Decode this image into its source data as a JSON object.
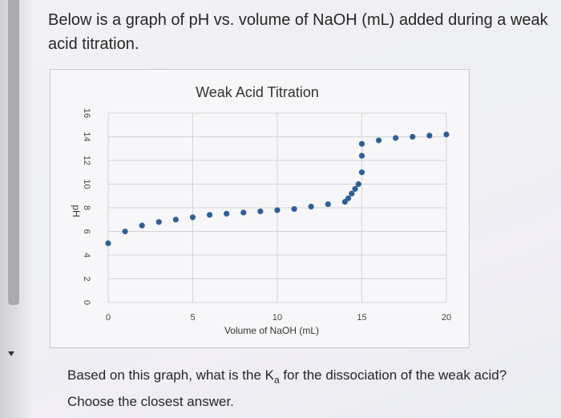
{
  "question": {
    "intro": "Below is a graph of pH vs. volume of NaOH (mL) added during a weak acid titration.",
    "prompt_line1_before": "Based on this graph, what is the K",
    "prompt_subscript": "a",
    "prompt_line1_after": " for the dissociation of the weak acid?",
    "prompt_line2": "Choose the closest answer."
  },
  "colors": {
    "marker": "#2f5f9a",
    "grid": "#d4d4d8"
  },
  "chart_data": {
    "type": "scatter",
    "title": "Weak Acid Titration",
    "xlabel": "Volume of NaOH (mL)",
    "ylabel": "pH",
    "xlim": [
      0,
      20
    ],
    "ylim": [
      0,
      16
    ],
    "xticks": [
      0,
      5,
      10,
      15,
      20
    ],
    "yticks": [
      0,
      2,
      4,
      6,
      8,
      10,
      12,
      14,
      16
    ],
    "grid": true,
    "series": [
      {
        "x": [
          0,
          1,
          2,
          3,
          4,
          5,
          6,
          7,
          8,
          9,
          10,
          11,
          12,
          13,
          14,
          14.2,
          14.4,
          14.6,
          14.8,
          15,
          15,
          15,
          16,
          17,
          18,
          19,
          20
        ],
        "y": [
          5.0,
          6.0,
          6.5,
          6.8,
          7.0,
          7.2,
          7.4,
          7.5,
          7.6,
          7.7,
          7.8,
          7.9,
          8.1,
          8.3,
          8.5,
          8.8,
          9.2,
          9.6,
          10.0,
          11.0,
          12.4,
          13.4,
          13.7,
          13.9,
          14.0,
          14.1,
          14.2
        ]
      }
    ]
  }
}
